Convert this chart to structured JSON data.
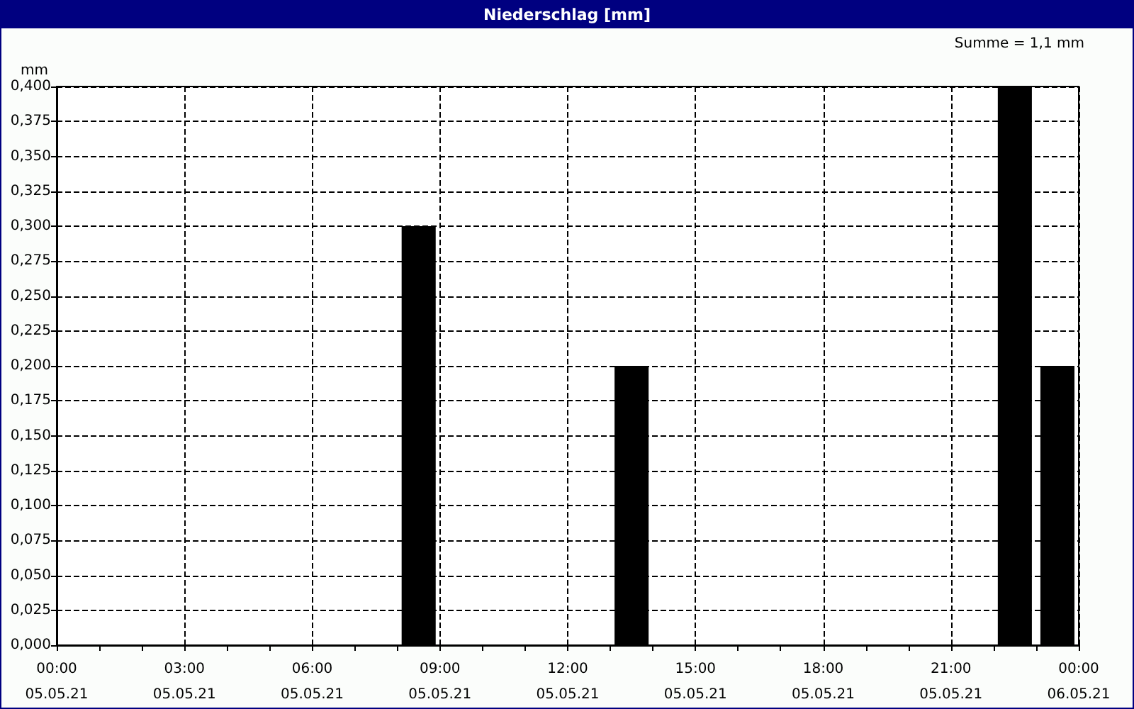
{
  "chart_data": {
    "type": "bar",
    "title": "Niederschlag [mm]",
    "ylabel": "mm",
    "annotations": [
      "Summe = 1,1 mm"
    ],
    "x": [
      "--05-05T08:30",
      "--05-05T13:30",
      "--05-05T22:30",
      "--05-05T23:30"
    ],
    "series": [
      {
        "color": "#000000",
        "values": [
          0.3,
          0.2,
          0.4,
          0.2
        ]
      }
    ],
    "xlim": [
      "--05-05T00:00",
      "--05-06T00:00"
    ],
    "xticks": [
      {
        "value": "--05-05T00:00",
        "label": "00:00\n05.05.21"
      },
      {
        "value": "--05-05T01:00",
        "label": null
      },
      {
        "value": "--05-05T02:00",
        "label": null
      },
      {
        "value": "--05-05T03:00",
        "label": "03:00\n05.05.21"
      },
      {
        "value": "--05-05T04:00",
        "label": null
      },
      {
        "value": "--05-05T05:00",
        "label": null
      },
      {
        "value": "--05-05T06:00",
        "label": "06:00\n05.05.21"
      },
      {
        "value": "--05-05T07:00",
        "label": null
      },
      {
        "value": "--05-05T08:00",
        "label": null
      },
      {
        "value": "--05-05T09:00",
        "label": "09:00\n05.05.21"
      },
      {
        "value": "--05-05T10:00",
        "label": null
      },
      {
        "value": "--05-05T11:00",
        "label": null
      },
      {
        "value": "--05-05T12:00",
        "label": "12:00\n05.05.21"
      },
      {
        "value": "--05-05T13:00",
        "label": null
      },
      {
        "value": "--05-05T14:00",
        "label": null
      },
      {
        "value": "--05-05T15:00",
        "label": "15:00\n05.05.21"
      },
      {
        "value": "--05-05T16:00",
        "label": null
      },
      {
        "value": "--05-05T17:00",
        "label": null
      },
      {
        "value": "--05-05T18:00",
        "label": "18:00\n05.05.21"
      },
      {
        "value": "--05-05T19:00",
        "label": null
      },
      {
        "value": "--05-05T20:00",
        "label": null
      },
      {
        "value": "--05-05T21:00",
        "label": "21:00\n05.05.21"
      },
      {
        "value": "--05-05T22:00",
        "label": null
      },
      {
        "value": "--05-05T23:00",
        "label": null
      },
      {
        "value": "--05-06T00:00",
        "label": "00:00\n06.05.21"
      }
    ],
    "ylim": [
      0,
      0.4
    ],
    "yticks": [
      {
        "value": 0,
        "label": "0,000"
      },
      {
        "value": 0.025,
        "label": "0,025"
      },
      {
        "value": 0.05,
        "label": "0,050"
      },
      {
        "value": 0.075,
        "label": "0,075"
      },
      {
        "value": 0.1,
        "label": "0,100"
      },
      {
        "value": 0.125,
        "label": "0,125"
      },
      {
        "value": 0.15,
        "label": "0,150"
      },
      {
        "value": 0.175,
        "label": "0,175"
      },
      {
        "value": 0.2,
        "label": "0,200"
      },
      {
        "value": 0.225,
        "label": "0,225"
      },
      {
        "value": 0.25,
        "label": "0,250"
      },
      {
        "value": 0.275,
        "label": "0,275"
      },
      {
        "value": 0.3,
        "label": "0,300"
      },
      {
        "value": 0.325,
        "label": "0,325"
      },
      {
        "value": 0.35,
        "label": "0,350"
      },
      {
        "value": 0.375,
        "label": "0,375"
      },
      {
        "value": 0.4,
        "label": "0,400"
      }
    ],
    "grid": true
  }
}
